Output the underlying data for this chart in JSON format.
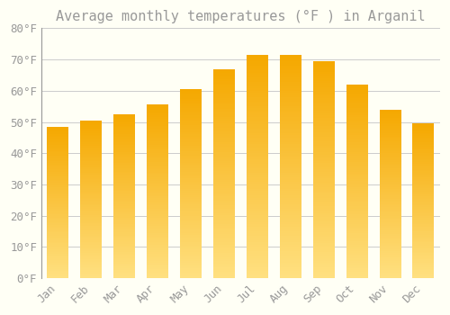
{
  "title": "Average monthly temperatures (°F ) in Arganil",
  "months": [
    "Jan",
    "Feb",
    "Mar",
    "Apr",
    "May",
    "Jun",
    "Jul",
    "Aug",
    "Sep",
    "Oct",
    "Nov",
    "Dec"
  ],
  "values": [
    48.5,
    50.5,
    52.5,
    55.5,
    60.5,
    67.0,
    71.5,
    71.5,
    69.5,
    62.0,
    54.0,
    49.5
  ],
  "bar_color_top": "#F5A800",
  "bar_color_bottom": "#FFE080",
  "background_color": "#FFFFF5",
  "grid_color": "#CCCCCC",
  "text_color": "#999999",
  "ylim": [
    0,
    80
  ],
  "ytick_step": 10,
  "title_fontsize": 11,
  "tick_fontsize": 9,
  "bar_width": 0.65,
  "gradient_steps": 100
}
